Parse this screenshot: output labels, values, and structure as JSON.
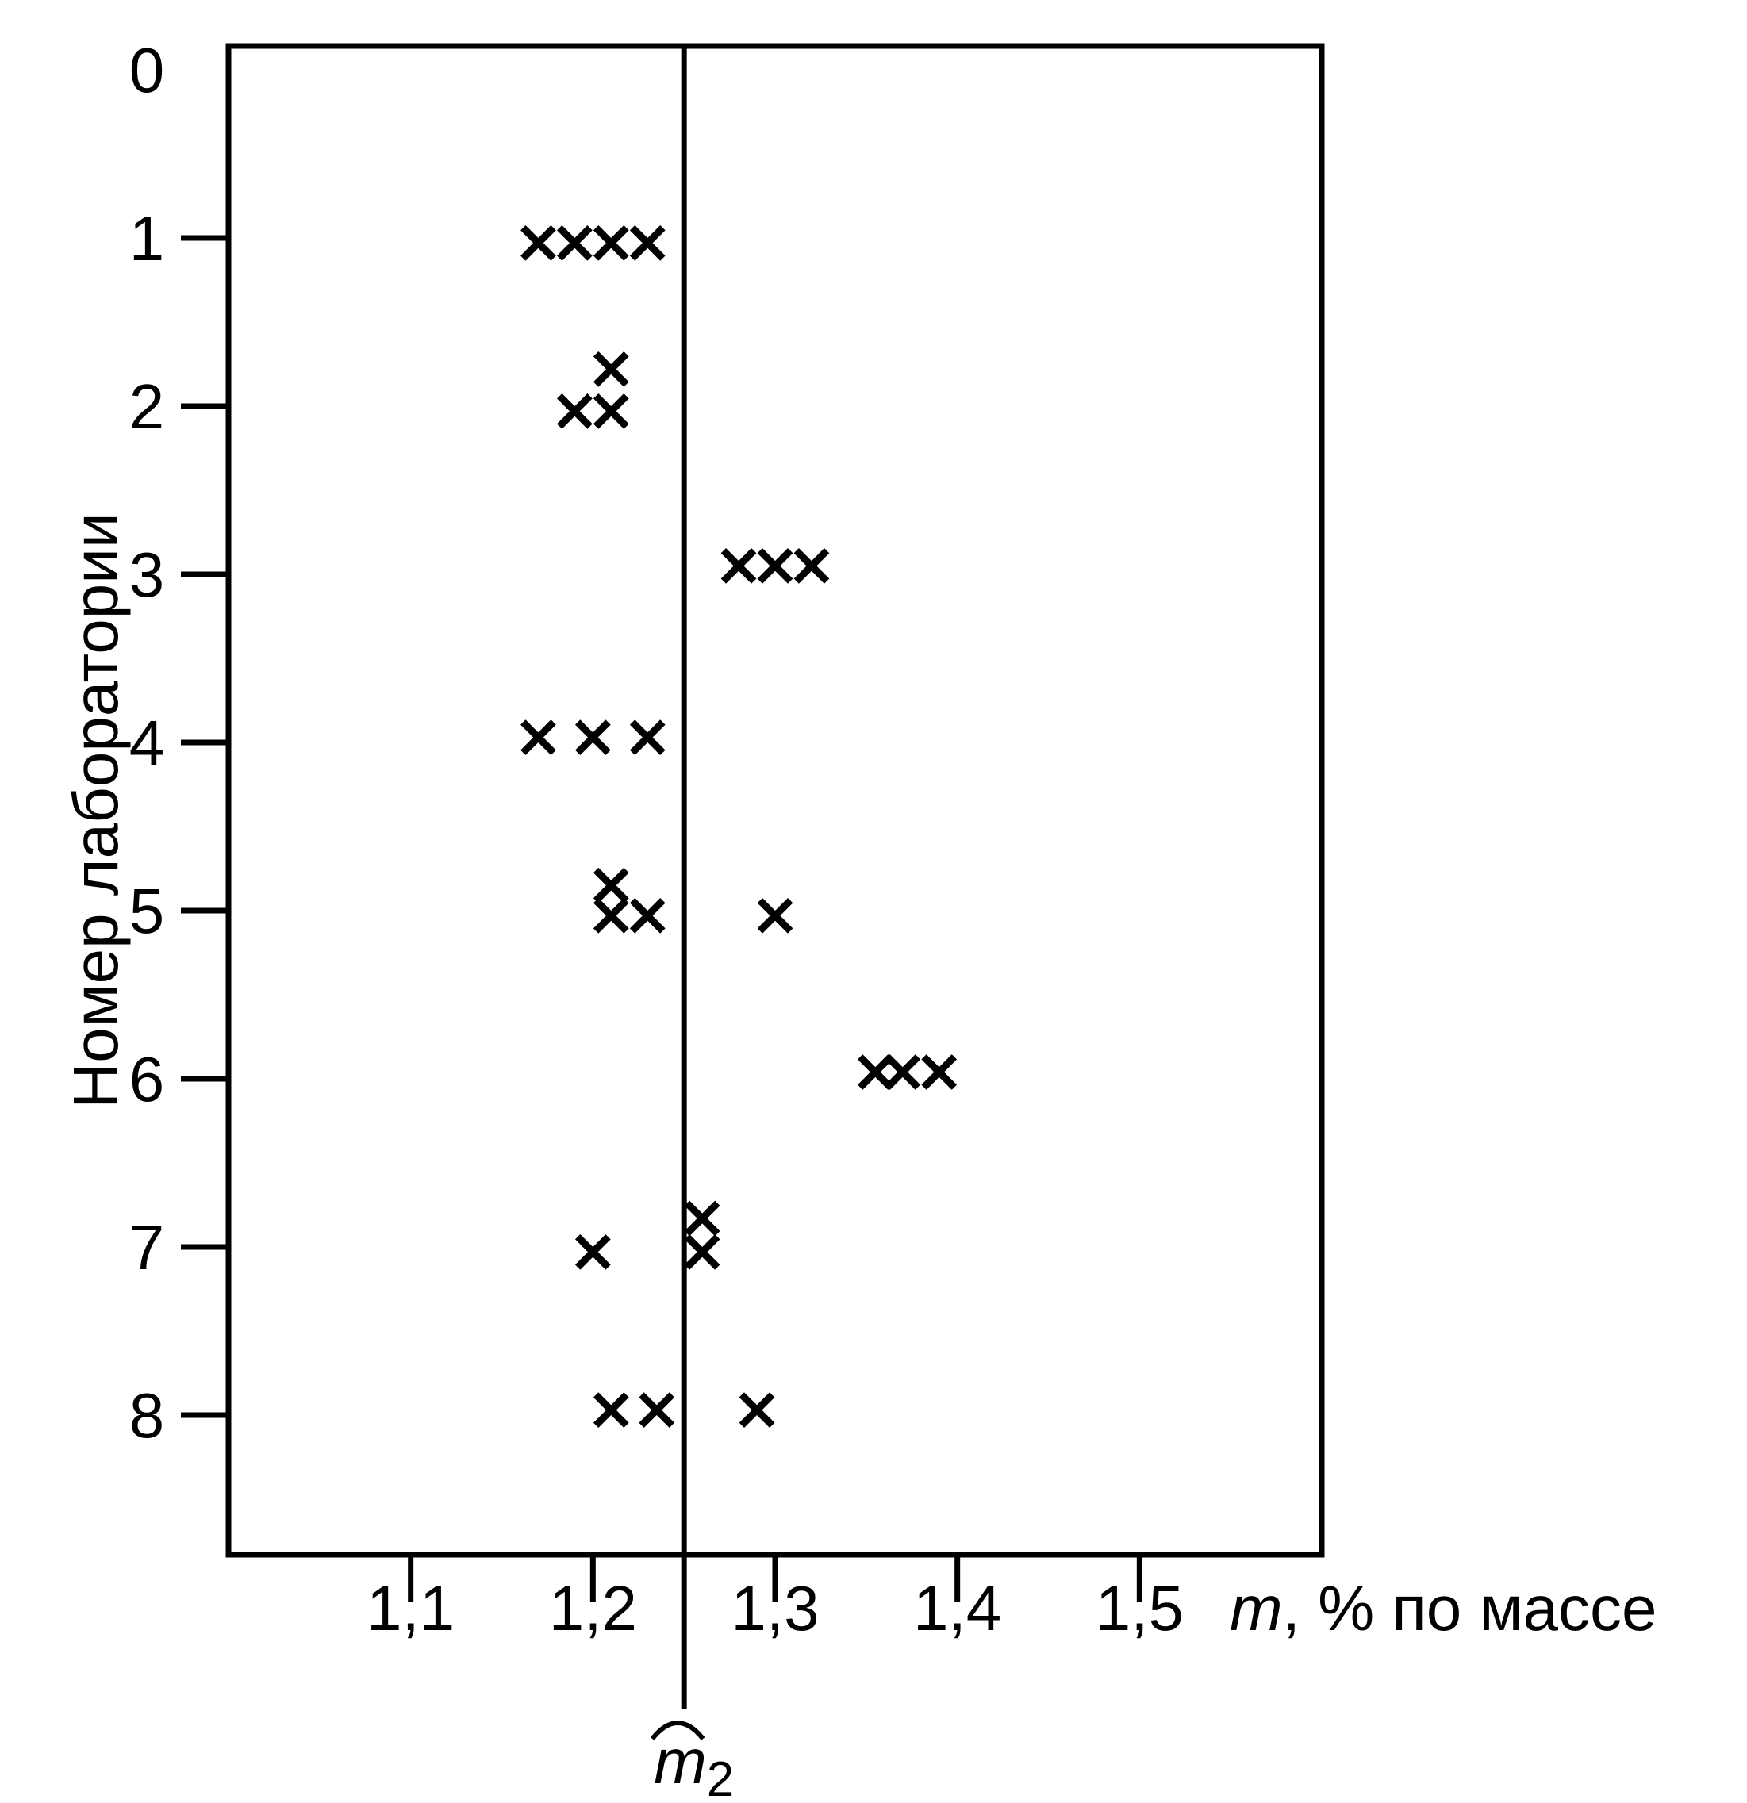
{
  "chart_data": {
    "type": "scatter",
    "marker": "x",
    "colors": {
      "ink": "#000000",
      "background": "#ffffff"
    },
    "ylabel": "Номер лаборатории",
    "xlabel_var": "m",
    "xlabel_rest": ", % по массе",
    "y_ticks": [
      "0",
      "1",
      "2",
      "3",
      "4",
      "5",
      "6",
      "7",
      "8"
    ],
    "x_ticks": [
      "1,1",
      "1,2",
      "1,3",
      "1,4",
      "1,5"
    ],
    "x_tick_values": [
      1.1,
      1.2,
      1.3,
      1.4,
      1.5
    ],
    "xlim": [
      1.0,
      1.6
    ],
    "ylim": [
      0,
      9.1
    ],
    "y_inverted": true,
    "grid": false,
    "mean_line": {
      "label_var": "m",
      "label_sub": "2",
      "x": 1.25
    },
    "points": [
      {
        "lab": 1,
        "x": 1.17,
        "y": 1.03
      },
      {
        "lab": 1,
        "x": 1.19,
        "y": 1.03
      },
      {
        "lab": 1,
        "x": 1.21,
        "y": 1.03
      },
      {
        "lab": 1,
        "x": 1.23,
        "y": 1.03
      },
      {
        "lab": 2,
        "x": 1.21,
        "y": 1.78
      },
      {
        "lab": 2,
        "x": 1.19,
        "y": 2.03
      },
      {
        "lab": 2,
        "x": 1.21,
        "y": 2.03
      },
      {
        "lab": 3,
        "x": 1.28,
        "y": 2.95
      },
      {
        "lab": 3,
        "x": 1.3,
        "y": 2.95
      },
      {
        "lab": 3,
        "x": 1.32,
        "y": 2.95
      },
      {
        "lab": 4,
        "x": 1.17,
        "y": 3.97
      },
      {
        "lab": 4,
        "x": 1.2,
        "y": 3.97
      },
      {
        "lab": 4,
        "x": 1.23,
        "y": 3.97
      },
      {
        "lab": 5,
        "x": 1.21,
        "y": 4.85
      },
      {
        "lab": 5,
        "x": 1.21,
        "y": 5.03
      },
      {
        "lab": 5,
        "x": 1.23,
        "y": 5.03
      },
      {
        "lab": 5,
        "x": 1.3,
        "y": 5.03
      },
      {
        "lab": 6,
        "x": 1.355,
        "y": 5.96
      },
      {
        "lab": 6,
        "x": 1.37,
        "y": 5.96
      },
      {
        "lab": 6,
        "x": 1.39,
        "y": 5.96
      },
      {
        "lab": 7,
        "x": 1.26,
        "y": 6.83
      },
      {
        "lab": 7,
        "x": 1.2,
        "y": 7.03
      },
      {
        "lab": 7,
        "x": 1.26,
        "y": 7.03
      },
      {
        "lab": 8,
        "x": 1.21,
        "y": 7.97
      },
      {
        "lab": 8,
        "x": 1.235,
        "y": 7.97
      },
      {
        "lab": 8,
        "x": 1.29,
        "y": 7.97
      }
    ]
  }
}
